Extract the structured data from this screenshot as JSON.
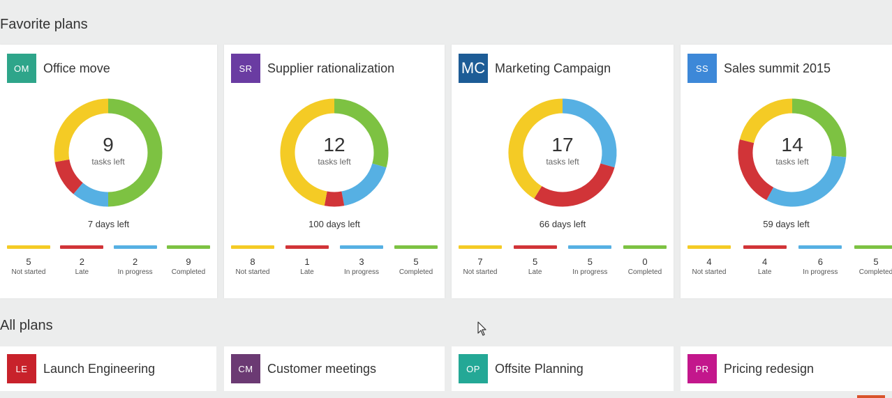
{
  "sections": {
    "favorite_title": "Favorite plans",
    "all_title": "All plans"
  },
  "colors": {
    "not_started": "#f4cb25",
    "late": "#d13438",
    "in_progress": "#56b0e3",
    "completed": "#7dc242"
  },
  "favorites": [
    {
      "initials": "OM",
      "name": "Office move",
      "badge_color": "#2ea58a",
      "tasks_left": "9",
      "tasks_label": "tasks left",
      "days_left": "7 days left",
      "segments": [
        {
          "key": "not_started",
          "count": "5",
          "label": "Not started",
          "value": 5
        },
        {
          "key": "late",
          "count": "2",
          "label": "Late",
          "value": 2
        },
        {
          "key": "in_progress",
          "count": "2",
          "label": "In progress",
          "value": 2
        },
        {
          "key": "completed",
          "count": "9",
          "label": "Completed",
          "value": 9
        }
      ]
    },
    {
      "initials": "SR",
      "name": "Supplier rationalization",
      "badge_color": "#6a3ca2",
      "tasks_left": "12",
      "tasks_label": "tasks left",
      "days_left": "100 days left",
      "segments": [
        {
          "key": "not_started",
          "count": "8",
          "label": "Not started",
          "value": 8
        },
        {
          "key": "late",
          "count": "1",
          "label": "Late",
          "value": 1
        },
        {
          "key": "in_progress",
          "count": "3",
          "label": "In progress",
          "value": 3
        },
        {
          "key": "completed",
          "count": "5",
          "label": "Completed",
          "value": 5
        }
      ]
    },
    {
      "initials": "MC",
      "name": "Marketing Campaign",
      "badge_color": "#1d5c96",
      "tasks_left": "17",
      "tasks_label": "tasks left",
      "days_left": "66 days left",
      "segments": [
        {
          "key": "not_started",
          "count": "7",
          "label": "Not started",
          "value": 7
        },
        {
          "key": "late",
          "count": "5",
          "label": "Late",
          "value": 5
        },
        {
          "key": "in_progress",
          "count": "5",
          "label": "In progress",
          "value": 5
        },
        {
          "key": "completed",
          "count": "0",
          "label": "Completed",
          "value": 0
        }
      ]
    },
    {
      "initials": "SS",
      "name": "Sales summit 2015",
      "badge_color": "#3d88d8",
      "tasks_left": "14",
      "tasks_label": "tasks left",
      "days_left": "59 days left",
      "segments": [
        {
          "key": "not_started",
          "count": "4",
          "label": "Not started",
          "value": 4
        },
        {
          "key": "late",
          "count": "4",
          "label": "Late",
          "value": 4
        },
        {
          "key": "in_progress",
          "count": "6",
          "label": "In progress",
          "value": 6
        },
        {
          "key": "completed",
          "count": "5",
          "label": "Completed",
          "value": 5
        }
      ]
    }
  ],
  "all_plans": [
    {
      "initials": "LE",
      "name": "Launch Engineering",
      "badge_color": "#c8222b"
    },
    {
      "initials": "CM",
      "name": "Customer meetings",
      "badge_color": "#6b3a73"
    },
    {
      "initials": "OP",
      "name": "Offsite Planning",
      "badge_color": "#24a896"
    },
    {
      "initials": "PR",
      "name": "Pricing redesign",
      "badge_color": "#c3178c"
    }
  ]
}
